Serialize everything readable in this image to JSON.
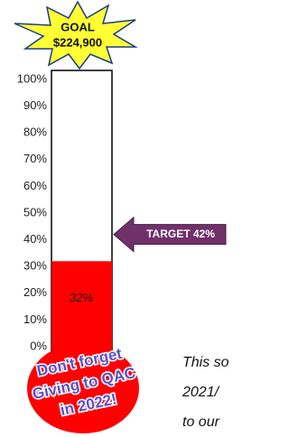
{
  "chart_data": {
    "type": "thermometer",
    "goal": {
      "title": "GOAL",
      "label": "$224,900"
    },
    "values": [
      32
    ],
    "value_labels": [
      "32%"
    ],
    "color": "#ff0000",
    "target": {
      "value": 42,
      "label": "TARGET 42%",
      "color": "#70306a"
    },
    "ylim": [
      0,
      100
    ],
    "yticks": [
      {
        "value": 0,
        "label": "0%"
      },
      {
        "value": 10,
        "label": "10%"
      },
      {
        "value": 20,
        "label": "20%"
      },
      {
        "value": 30,
        "label": "30%"
      },
      {
        "value": 40,
        "label": "40%"
      },
      {
        "value": 50,
        "label": "50%"
      },
      {
        "value": 60,
        "label": "60%"
      },
      {
        "value": 70,
        "label": "70%"
      },
      {
        "value": 80,
        "label": "80%"
      },
      {
        "value": 90,
        "label": "90%"
      },
      {
        "value": 100,
        "label": "100%"
      }
    ],
    "badge_lines": [
      "Don't forget",
      "Giving to QAC",
      "in 2022!"
    ],
    "side_text": [
      "This so",
      "2021/",
      "to our"
    ]
  }
}
